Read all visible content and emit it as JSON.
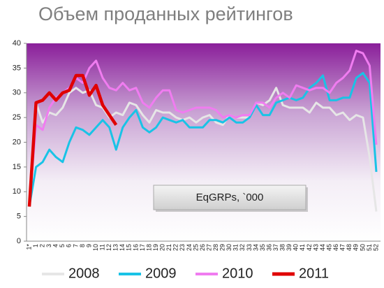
{
  "chart_data": {
    "type": "line",
    "title": "Объем проданных рейтингов",
    "annotation": "EqGRPs, `000",
    "categories": [
      "1*",
      "1",
      "2",
      "3",
      "4",
      "5",
      "6",
      "7",
      "8",
      "9",
      "10",
      "11",
      "12",
      "13",
      "14",
      "15",
      "16",
      "17",
      "18",
      "19",
      "20",
      "21",
      "22",
      "23",
      "24",
      "25",
      "26",
      "27",
      "28",
      "29",
      "30",
      "31",
      "32",
      "33",
      "34",
      "35",
      "36",
      "37",
      "38",
      "39",
      "40",
      "41",
      "42",
      "43",
      "44",
      "45",
      "46",
      "47",
      "48",
      "49",
      "50",
      "51",
      "52"
    ],
    "ylim": [
      0,
      40
    ],
    "yticks": [
      0,
      5,
      10,
      15,
      20,
      25,
      30,
      35,
      40
    ],
    "legend": "bottom",
    "series": [
      {
        "name": "2008",
        "color": "#e6e6e6",
        "values": [
          7,
          28,
          24,
          26,
          25.5,
          27,
          30,
          31,
          30,
          30.5,
          27.5,
          27,
          25,
          26,
          25.5,
          28,
          27.5,
          25.5,
          24,
          26.5,
          26,
          26,
          25,
          24.5,
          25,
          24,
          25,
          25.5,
          24,
          23.5,
          25.5,
          25,
          25,
          25,
          28,
          27.5,
          28.5,
          31,
          27.5,
          27,
          27,
          27,
          26,
          28,
          27,
          27,
          25.5,
          26,
          24.5,
          25.5,
          25,
          17,
          6
        ]
      },
      {
        "name": "2009",
        "color": "#19c3e6",
        "values": [
          7,
          15,
          16,
          18.5,
          17,
          16,
          20,
          23,
          22.5,
          21.5,
          23,
          24.5,
          23,
          18.5,
          23,
          25,
          26.5,
          23,
          22,
          23,
          25,
          24.5,
          24,
          24.5,
          23,
          23,
          23,
          24.5,
          24.5,
          24,
          25,
          24,
          24,
          25,
          27.5,
          25.5,
          25.5,
          28,
          28.5,
          29,
          28.5,
          29,
          31,
          32,
          33.5,
          28.5,
          28.5,
          29,
          29,
          33,
          34,
          32,
          14
        ]
      },
      {
        "name": "2010",
        "color": "#f07cf0",
        "values": [
          7,
          23.5,
          22.5,
          27,
          29,
          30,
          31,
          33,
          32,
          35,
          36.5,
          33,
          31,
          30.5,
          32,
          30.5,
          31,
          28,
          27,
          29,
          30.5,
          30.5,
          26.5,
          26,
          26.5,
          27,
          27,
          27,
          26.5,
          25,
          25.5,
          25,
          25.5,
          25.5,
          28,
          28,
          27,
          29,
          30,
          29,
          31.5,
          31,
          30.5,
          31,
          31,
          30,
          32,
          33,
          34.5,
          38.5,
          38,
          35.5,
          19.5
        ]
      },
      {
        "name": "2011",
        "color": "#e00000",
        "values": [
          7,
          28,
          28.5,
          30,
          28.5,
          30,
          30.5,
          33.5,
          33.5,
          29.5,
          31.5,
          27.5,
          25.5,
          23.5,
          null,
          null,
          null,
          null,
          null,
          null,
          null,
          null,
          null,
          null,
          null,
          null,
          null,
          null,
          null,
          null,
          null,
          null,
          null,
          null,
          null,
          null,
          null,
          null,
          null,
          null,
          null,
          null,
          null,
          null,
          null,
          null,
          null,
          null,
          null,
          null,
          null,
          null,
          null
        ]
      }
    ]
  }
}
